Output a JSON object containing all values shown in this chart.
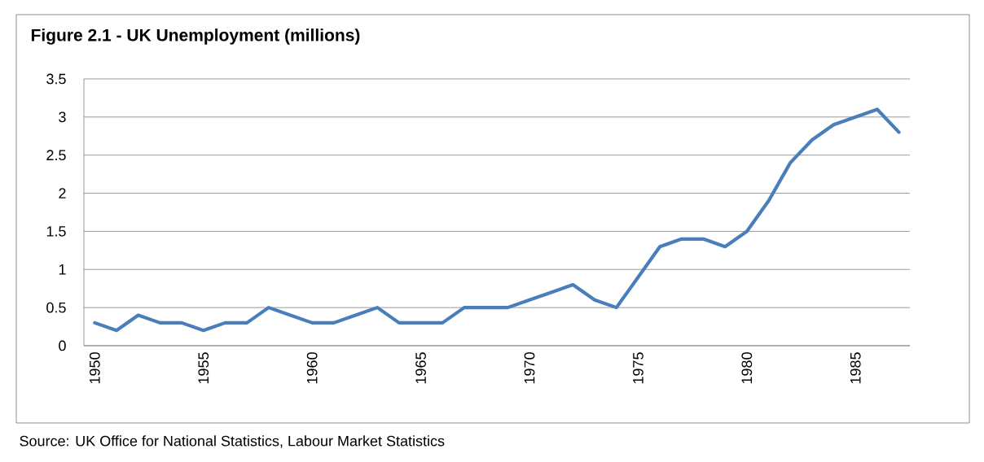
{
  "chart_data": {
    "type": "line",
    "title": "Figure 2.1 - UK Unemployment (millions)",
    "x": [
      1950,
      1951,
      1952,
      1953,
      1954,
      1955,
      1956,
      1957,
      1958,
      1959,
      1960,
      1961,
      1962,
      1963,
      1964,
      1965,
      1966,
      1967,
      1968,
      1969,
      1970,
      1971,
      1972,
      1973,
      1974,
      1975,
      1976,
      1977,
      1978,
      1979,
      1980,
      1981,
      1982,
      1983,
      1984,
      1985,
      1986,
      1987
    ],
    "series": [
      {
        "color": "#4a7ebb",
        "values": [
          0.3,
          0.2,
          0.4,
          0.3,
          0.3,
          0.2,
          0.3,
          0.3,
          0.5,
          0.4,
          0.3,
          0.3,
          0.4,
          0.5,
          0.3,
          0.3,
          0.3,
          0.5,
          0.5,
          0.5,
          0.6,
          0.7,
          0.8,
          0.6,
          0.5,
          0.9,
          1.3,
          1.4,
          1.4,
          1.3,
          1.5,
          1.9,
          2.4,
          2.7,
          2.9,
          3.0,
          3.1,
          2.8
        ]
      }
    ],
    "xlim": [
      1949.5,
      1987.5
    ],
    "xticks": [
      1950,
      1955,
      1960,
      1965,
      1970,
      1975,
      1980,
      1985
    ],
    "ylim": [
      0,
      3.5
    ],
    "yticks": [
      0,
      0.5,
      1,
      1.5,
      2,
      2.5,
      3,
      3.5
    ],
    "grid": "y",
    "marker": "none",
    "line_style": "solid",
    "annotations": [
      "Source: UK Office for National Statistics, Labour Market Statistics"
    ]
  }
}
